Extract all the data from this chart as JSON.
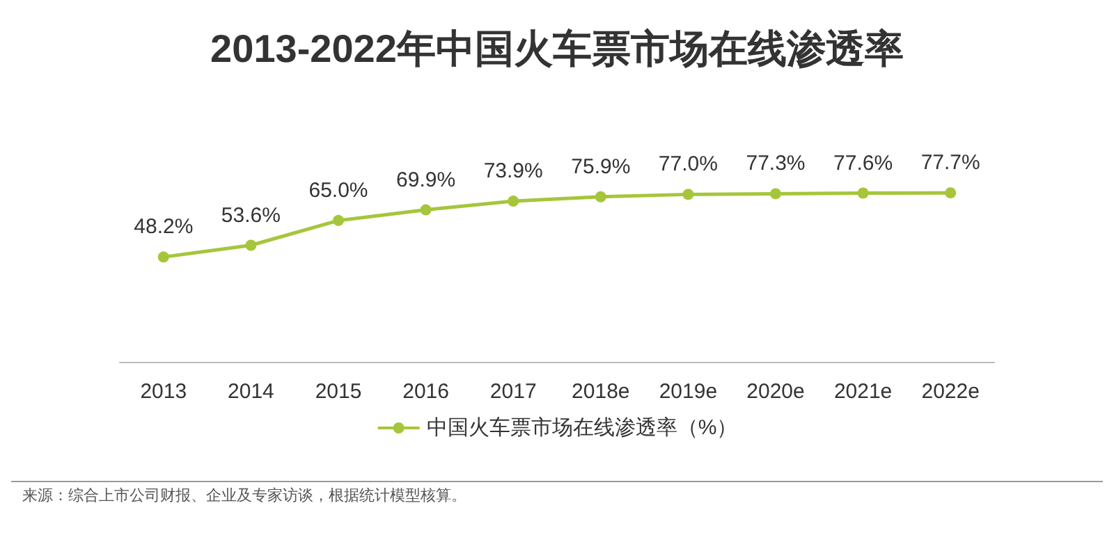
{
  "chart_data": {
    "type": "line",
    "title": "2013-2022年中国火车票市场在线渗透率",
    "categories": [
      "2013",
      "2014",
      "2015",
      "2016",
      "2017",
      "2018e",
      "2019e",
      "2020e",
      "2021e",
      "2022e"
    ],
    "series": [
      {
        "name": "中国火车票市场在线渗透率（%）",
        "color": "#a5c63b",
        "values": [
          48.2,
          53.6,
          65.0,
          69.9,
          73.9,
          75.9,
          77.0,
          77.3,
          77.6,
          77.7
        ],
        "value_labels": [
          "48.2%",
          "53.6%",
          "65.0%",
          "69.9%",
          "73.9%",
          "75.9%",
          "77.0%",
          "77.3%",
          "77.6%",
          "77.7%"
        ]
      }
    ],
    "tick_labels": "x",
    "marker": "circle",
    "legend": "bottom",
    "grid": false,
    "annotations": [
      "来源：综合上市公司财报、企业及专家访谈，根据统计模型核算。"
    ]
  }
}
